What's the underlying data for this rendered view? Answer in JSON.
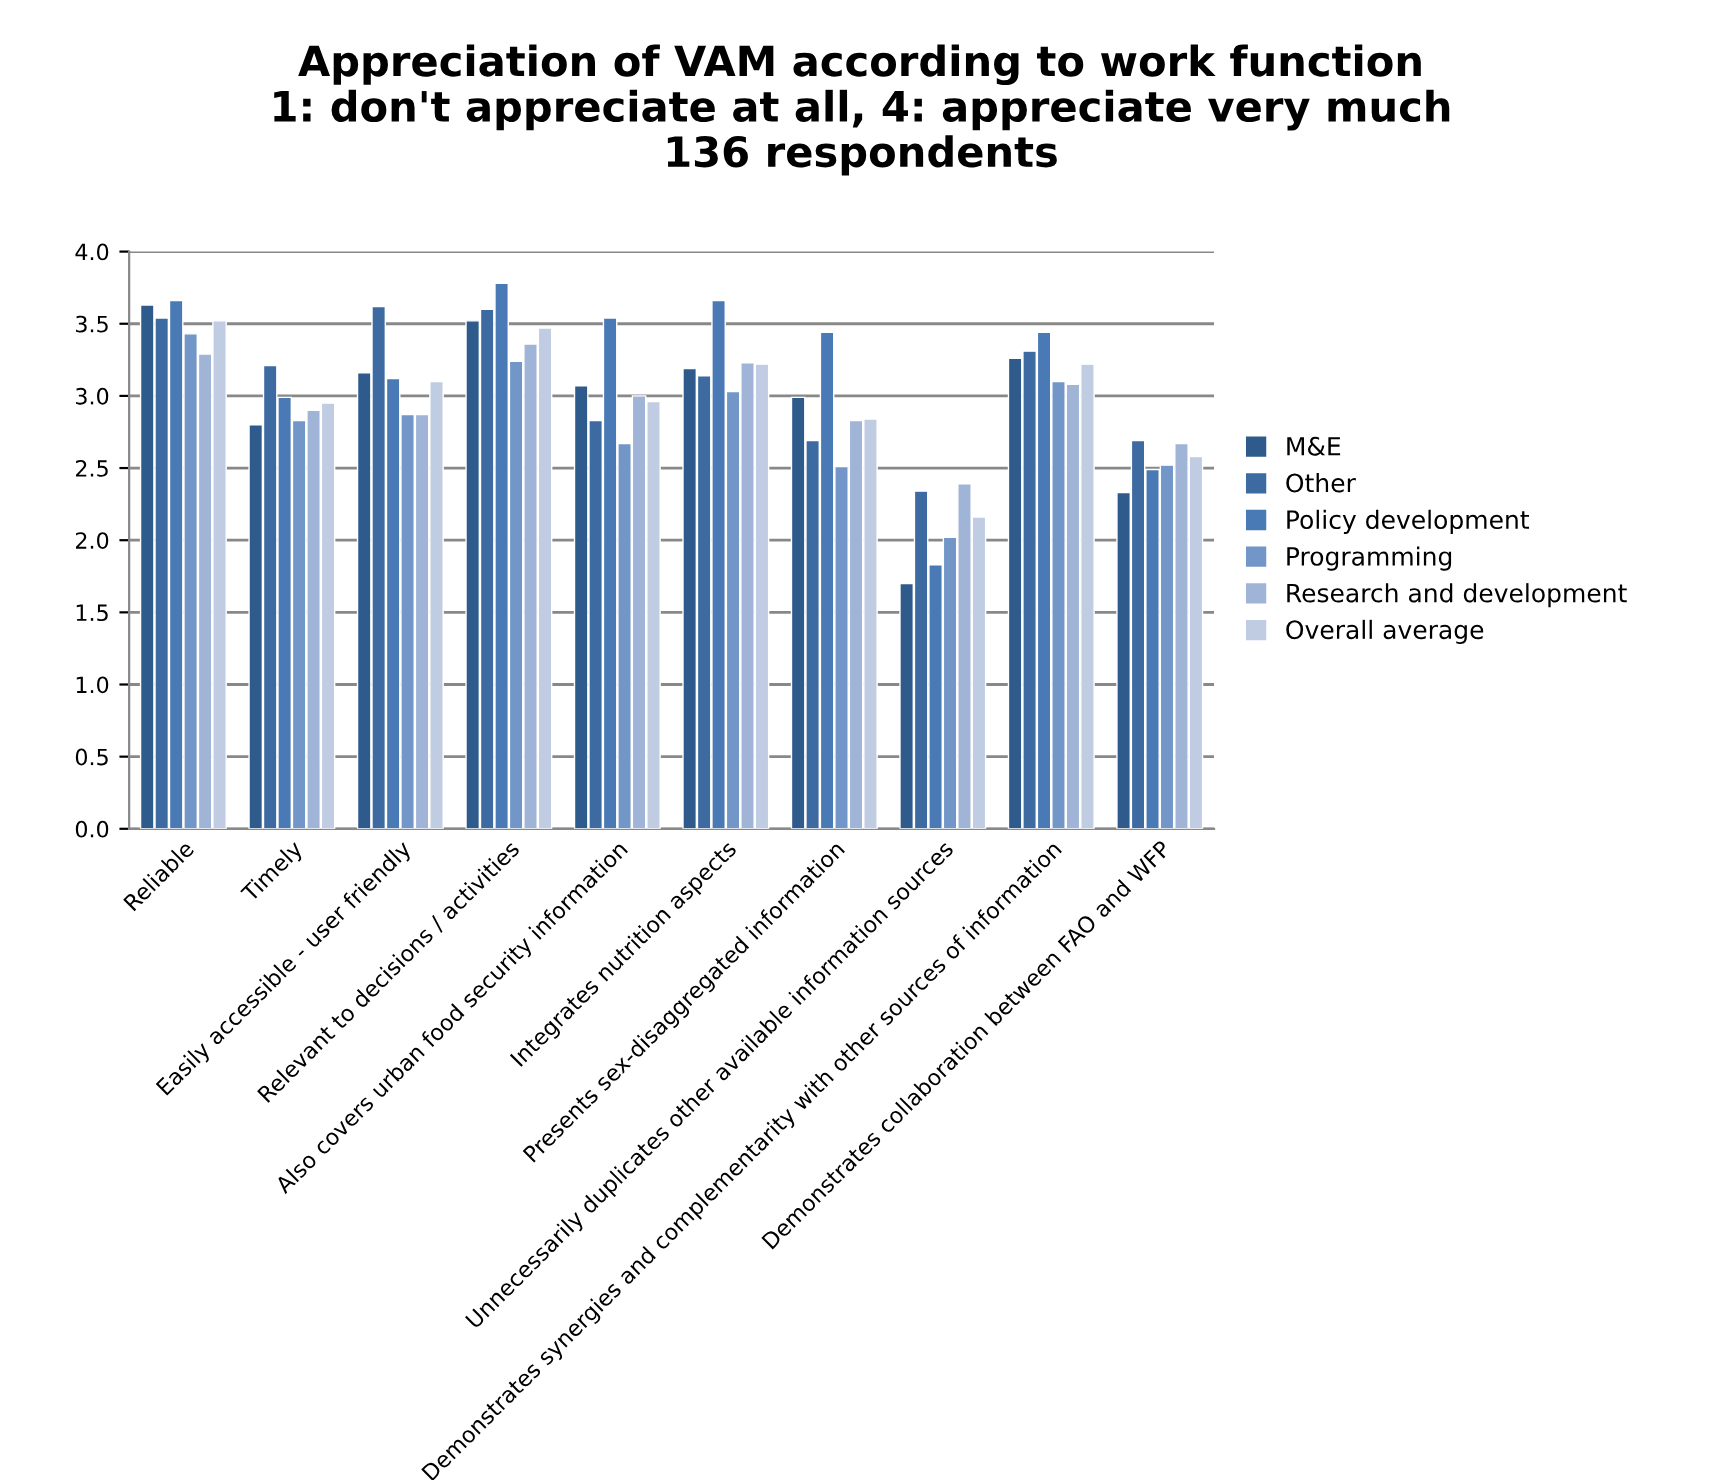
{
  "chart_data": {
    "type": "bar",
    "title": "Appreciation of VAM according to work function\n1: don't appreciate at all, 4: appreciate very much\n136 respondents",
    "categories": [
      "Reliable",
      "Timely",
      "Easily accessible - user friendly",
      "Relevant to decisions / activities",
      "Also covers urban food security information",
      "Integrates nutrition aspects",
      "Presents sex-disaggregated information",
      "Unnecessarily duplicates other available information sources",
      "Demonstrates synergies and complementarity with other sources of information",
      "Demonstrates collaboration between FAO and WFP"
    ],
    "series": [
      {
        "name": "M&E",
        "color": "#2f5a8c",
        "values": [
          3.63,
          2.8,
          3.16,
          3.52,
          3.07,
          3.19,
          2.99,
          1.7,
          3.26,
          2.33
        ]
      },
      {
        "name": "Other",
        "color": "#3d6aa0",
        "values": [
          3.54,
          3.21,
          3.62,
          3.6,
          2.83,
          3.14,
          2.69,
          2.34,
          3.31,
          2.69
        ]
      },
      {
        "name": "Policy development",
        "color": "#4a7ab5",
        "values": [
          3.66,
          2.99,
          3.12,
          3.78,
          3.54,
          3.66,
          3.44,
          1.83,
          3.44,
          2.49
        ]
      },
      {
        "name": "Programming",
        "color": "#7196c7",
        "values": [
          3.43,
          2.83,
          2.87,
          3.24,
          2.67,
          3.03,
          2.51,
          2.02,
          3.1,
          2.52
        ]
      },
      {
        "name": "Research and development",
        "color": "#9fb4d6",
        "values": [
          3.29,
          2.9,
          2.87,
          3.36,
          3.0,
          3.23,
          2.83,
          2.39,
          3.08,
          2.67
        ]
      },
      {
        "name": "Overall average",
        "color": "#c0cce2",
        "values": [
          3.52,
          2.95,
          3.1,
          3.47,
          2.96,
          3.22,
          2.84,
          2.16,
          3.22,
          2.58
        ]
      }
    ],
    "ylim": [
      0,
      4
    ],
    "yticks": [
      {
        "value": 0,
        "label": "0.0"
      },
      {
        "value": 0.5,
        "label": "0.5"
      },
      {
        "value": 1,
        "label": "1.0"
      },
      {
        "value": 1.5,
        "label": "1.5"
      },
      {
        "value": 2,
        "label": "2.0"
      },
      {
        "value": 2.5,
        "label": "2.5"
      },
      {
        "value": 3,
        "label": "3.0"
      },
      {
        "value": 3.5,
        "label": "3.5"
      },
      {
        "value": 4,
        "label": "4.0"
      }
    ],
    "grid": "y",
    "legend": "right"
  }
}
